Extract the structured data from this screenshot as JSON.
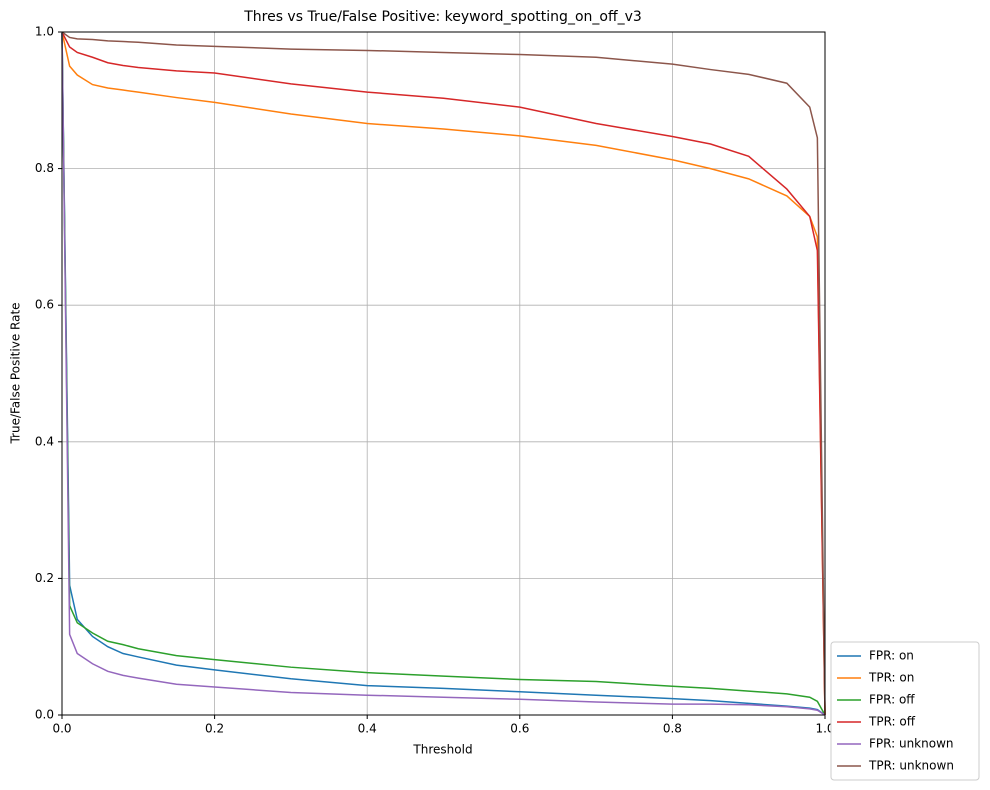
{
  "chart_data": {
    "type": "line",
    "title": "Thres vs True/False Positive: keyword_spotting_on_off_v3",
    "x_label": "Threshold",
    "y_label": "True/False Positive Rate",
    "x": [
      0,
      0.01,
      0.02,
      0.04,
      0.06,
      0.08,
      0.1,
      0.15,
      0.2,
      0.3,
      0.4,
      0.5,
      0.6,
      0.7,
      0.8,
      0.85,
      0.9,
      0.95,
      0.98,
      0.99,
      1.0
    ],
    "series": [
      {
        "name": "FPR: on",
        "color": "#1f77b4",
        "values": [
          1.0,
          0.19,
          0.14,
          0.115,
          0.1,
          0.09,
          0.085,
          0.073,
          0.066,
          0.053,
          0.043,
          0.039,
          0.034,
          0.029,
          0.024,
          0.021,
          0.017,
          0.013,
          0.01,
          0.008,
          0.0
        ]
      },
      {
        "name": "TPR: on",
        "color": "#ff7f0e",
        "values": [
          1.0,
          0.95,
          0.937,
          0.923,
          0.918,
          0.915,
          0.912,
          0.904,
          0.897,
          0.88,
          0.866,
          0.858,
          0.848,
          0.834,
          0.813,
          0.8,
          0.785,
          0.76,
          0.73,
          0.7,
          0.0
        ]
      },
      {
        "name": "FPR: off",
        "color": "#2ca02c",
        "values": [
          1.0,
          0.16,
          0.135,
          0.12,
          0.108,
          0.103,
          0.097,
          0.087,
          0.081,
          0.07,
          0.062,
          0.057,
          0.052,
          0.049,
          0.042,
          0.039,
          0.035,
          0.031,
          0.026,
          0.02,
          0.0
        ]
      },
      {
        "name": "TPR: off",
        "color": "#d62728",
        "values": [
          1.0,
          0.978,
          0.97,
          0.963,
          0.955,
          0.951,
          0.948,
          0.943,
          0.94,
          0.924,
          0.912,
          0.903,
          0.89,
          0.866,
          0.847,
          0.836,
          0.818,
          0.77,
          0.73,
          0.68,
          0.0
        ]
      },
      {
        "name": "FPR: unknown",
        "color": "#9467bd",
        "values": [
          1.0,
          0.118,
          0.09,
          0.075,
          0.064,
          0.058,
          0.054,
          0.045,
          0.041,
          0.033,
          0.029,
          0.026,
          0.023,
          0.019,
          0.016,
          0.016,
          0.015,
          0.012,
          0.009,
          0.007,
          0.0
        ]
      },
      {
        "name": "TPR: unknown",
        "color": "#8c564b",
        "values": [
          1.0,
          0.992,
          0.99,
          0.989,
          0.987,
          0.986,
          0.985,
          0.981,
          0.979,
          0.975,
          0.973,
          0.97,
          0.967,
          0.963,
          0.953,
          0.945,
          0.938,
          0.925,
          0.89,
          0.845,
          0.0
        ]
      }
    ],
    "xlim": [
      0,
      1
    ],
    "ylim": [
      0,
      1
    ],
    "xticks": [
      {
        "value": 0,
        "label": "0.0"
      },
      0.2,
      0.4,
      0.6,
      0.8,
      {
        "value": 1,
        "label": "1.0"
      }
    ],
    "yticks": [
      {
        "value": 0,
        "label": "0.0"
      },
      0.2,
      0.4,
      0.6,
      0.8,
      {
        "value": 1,
        "label": "1.0"
      }
    ],
    "grid": true,
    "legend_position": "lower right outside"
  }
}
